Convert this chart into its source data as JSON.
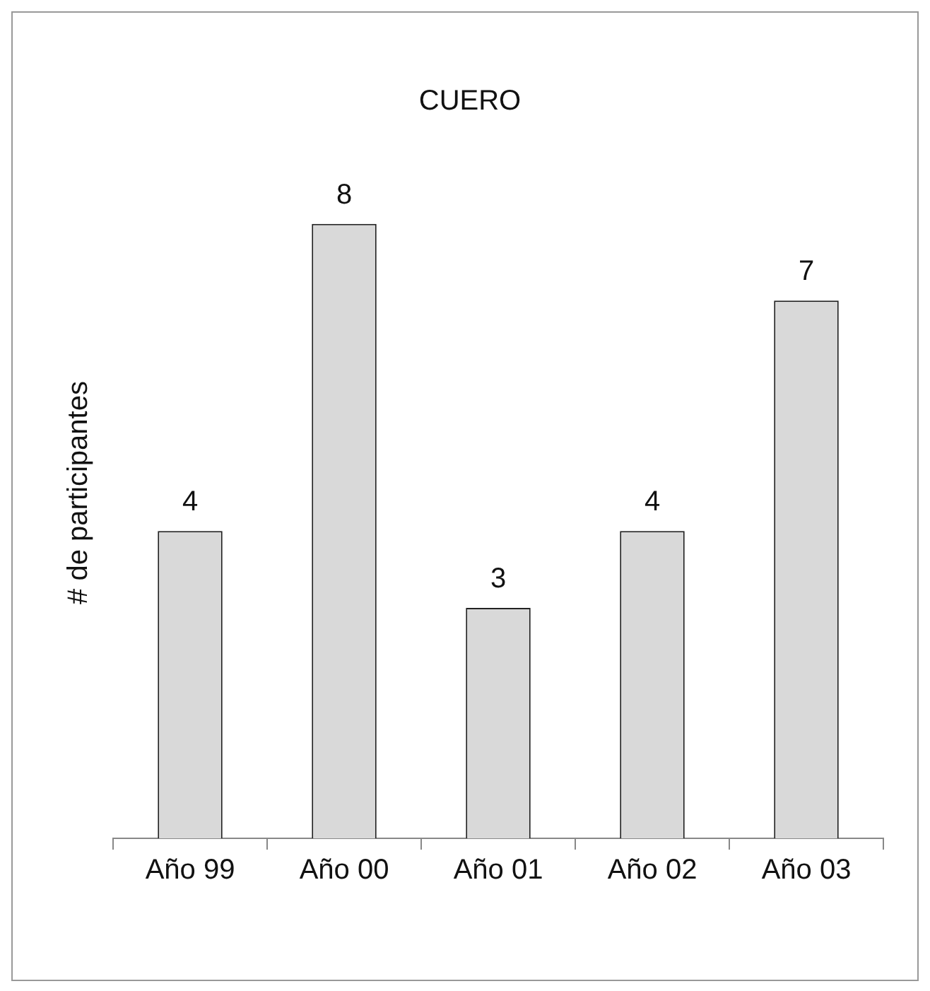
{
  "chart_data": {
    "type": "bar",
    "title": "CUERO",
    "ylabel": "# de participantes",
    "categories": [
      "Año 99",
      "Año 00",
      "Año 01",
      "Año 02",
      "Año 03"
    ],
    "values": [
      4,
      8,
      3,
      4,
      7
    ],
    "color": "#d9d9d9",
    "data_labels": true
  }
}
